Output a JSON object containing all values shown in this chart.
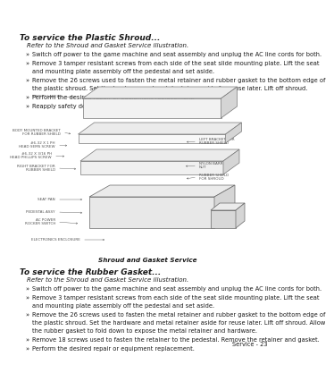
{
  "bg_color": "#ffffff",
  "text_color": "#1a1a1a",
  "page_label": "Service - 23",
  "section1_title": "To service the Plastic Shroud...",
  "section1_italic": "Refer to the Shroud and Gasket Service illustration.",
  "section1_bullets": [
    "Switch off power to the game machine and seat assembly and unplug the AC line cords for both.",
    "Remove 3 tamper resistant screws from each side of the seat slide mounting plate. Lift the seat\nand mounting plate assembly off the pedestal and set aside.",
    "Remove the 26 screws used to fasten the metal retainer and rubber gasket to the bottom edge of\nthe plastic shroud. Set the hardware and metal retainer aside for reuse later. Lift off shroud.",
    "Perform the desired repair or equipment replacement.",
    "Reapply safety decals to shroud."
  ],
  "figure_caption": "Shroud and Gasket Service",
  "section2_title": "To service the Rubber Gasket...",
  "section2_italic": "Refer to the Shroud and Gasket Service illustration.",
  "section2_bullets": [
    "Switch off power to the game machine and seat assembly and unplug the AC line cords for both.",
    "Remove 3 tamper resistant screws from each side of the seat slide mounting plate. Lift the seat\nand mounting plate assembly off the pedestal and set aside.",
    "Remove the 26 screws used to fasten the metal retainer and rubber gasket to the bottom edge of\nthe plastic shroud. Set the hardware and metal retainer aside for reuse later. Lift off shroud. Allow\nthe rubber gasket to fold down to expose the metal retainer and hardware.",
    "Remove 18 screws used to fasten the retainer to the pedestal. Remove the retainer and gasket.",
    "Perform the desired repair or equipment replacement."
  ]
}
